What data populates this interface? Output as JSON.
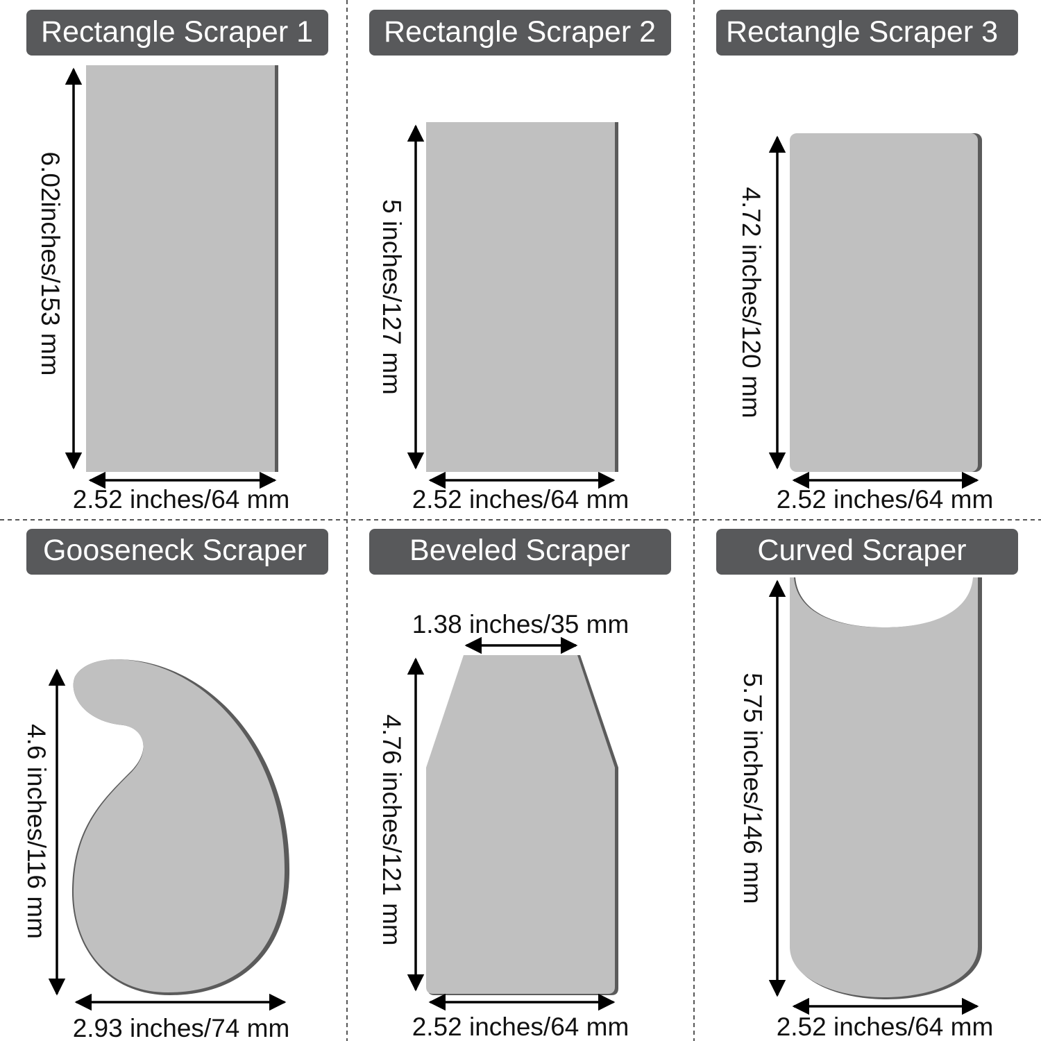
{
  "panels": [
    {
      "title": "Rectangle Scraper 1",
      "height_label": "6.02inches/153 mm",
      "width_label": "2.52 inches/64 mm",
      "height_in": 6.02,
      "height_mm": 153,
      "width_in": 2.52,
      "width_mm": 64
    },
    {
      "title": "Rectangle Scraper 2",
      "height_label": "5 inches/127 mm",
      "width_label": "2.52 inches/64 mm",
      "height_in": 5,
      "height_mm": 127,
      "width_in": 2.52,
      "width_mm": 64
    },
    {
      "title": "Rectangle Scraper 3",
      "height_label": "4.72 inches/120 mm",
      "width_label": "2.52 inches/64 mm",
      "height_in": 4.72,
      "height_mm": 120,
      "width_in": 2.52,
      "width_mm": 64
    },
    {
      "title": "Gooseneck Scraper",
      "height_label": "4.6 inches/116 mm",
      "width_label": "2.93 inches/74 mm",
      "height_in": 4.6,
      "height_mm": 116,
      "width_in": 2.93,
      "width_mm": 74
    },
    {
      "title": "Beveled Scraper",
      "top_label": "1.38 inches/35 mm",
      "height_label": "4.76 inches/121 mm",
      "width_label": "2.52 inches/64 mm",
      "top_in": 1.38,
      "top_mm": 35,
      "height_in": 4.76,
      "height_mm": 121,
      "width_in": 2.52,
      "width_mm": 64
    },
    {
      "title": "Curved Scraper",
      "height_label": "5.75 inches/146 mm",
      "width_label": "2.52 inches/64 mm",
      "height_in": 5.75,
      "height_mm": 146,
      "width_in": 2.52,
      "width_mm": 64
    }
  ],
  "colors": {
    "label_background": "#58595b",
    "label_text": "#ffffff",
    "scraper_face": "#c0c0c0",
    "scraper_edge": "#5b5b5b"
  }
}
